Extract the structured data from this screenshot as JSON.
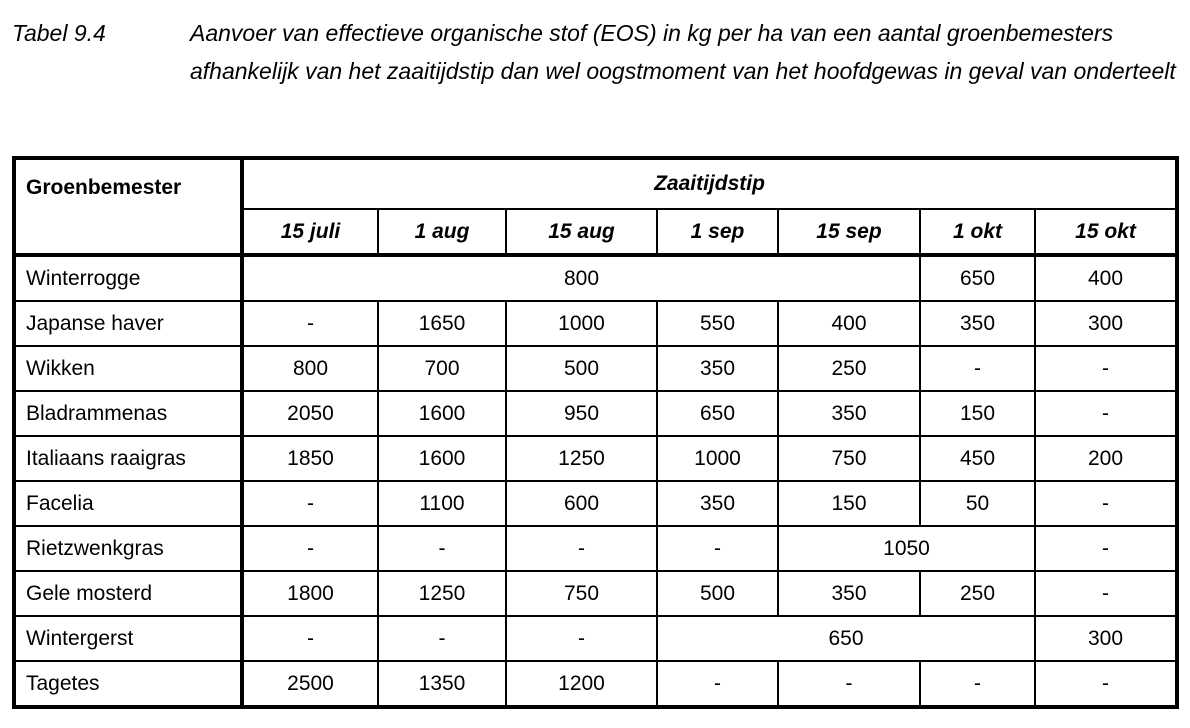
{
  "caption": {
    "label": "Tabel 9.4",
    "text": "Aanvoer van effectieve organische stof (EOS) in kg per ha van een aantal groenbemesters afhankelijk van het zaaitijdstip dan wel oogstmoment van het hoofdgewas in geval van onderteelt"
  },
  "table": {
    "row_header": "Groenbemester",
    "group_header": "Zaaitijdstip",
    "columns": [
      "15 juli",
      "1 aug",
      "15 aug",
      "1 sep",
      "15 sep",
      "1 okt",
      "15 okt"
    ],
    "rows": [
      {
        "name": "Winterrogge",
        "cells": [
          {
            "v": "800",
            "span": 5
          },
          {
            "v": "650"
          },
          {
            "v": "400"
          }
        ]
      },
      {
        "name": "Japanse haver",
        "cells": [
          {
            "v": "-"
          },
          {
            "v": "1650"
          },
          {
            "v": "1000"
          },
          {
            "v": "550"
          },
          {
            "v": "400"
          },
          {
            "v": "350"
          },
          {
            "v": "300"
          }
        ]
      },
      {
        "name": "Wikken",
        "cells": [
          {
            "v": "800"
          },
          {
            "v": "700"
          },
          {
            "v": "500"
          },
          {
            "v": "350"
          },
          {
            "v": "250"
          },
          {
            "v": "-"
          },
          {
            "v": "-"
          }
        ]
      },
      {
        "name": "Bladrammenas",
        "cells": [
          {
            "v": "2050"
          },
          {
            "v": "1600"
          },
          {
            "v": "950"
          },
          {
            "v": "650"
          },
          {
            "v": "350"
          },
          {
            "v": "150"
          },
          {
            "v": "-"
          }
        ]
      },
      {
        "name": "Italiaans raaigras",
        "cells": [
          {
            "v": "1850"
          },
          {
            "v": "1600"
          },
          {
            "v": "1250"
          },
          {
            "v": "1000"
          },
          {
            "v": "750"
          },
          {
            "v": "450"
          },
          {
            "v": "200"
          }
        ]
      },
      {
        "name": "Facelia",
        "cells": [
          {
            "v": "-"
          },
          {
            "v": "1100"
          },
          {
            "v": "600"
          },
          {
            "v": "350"
          },
          {
            "v": "150"
          },
          {
            "v": "50"
          },
          {
            "v": "-"
          }
        ]
      },
      {
        "name": "Rietzwenkgras",
        "cells": [
          {
            "v": "-"
          },
          {
            "v": "-"
          },
          {
            "v": "-"
          },
          {
            "v": "-"
          },
          {
            "v": "1050",
            "span": 2
          },
          {
            "v": "-"
          }
        ]
      },
      {
        "name": "Gele mosterd",
        "cells": [
          {
            "v": "1800"
          },
          {
            "v": "1250"
          },
          {
            "v": "750"
          },
          {
            "v": "500"
          },
          {
            "v": "350"
          },
          {
            "v": "250"
          },
          {
            "v": "-"
          }
        ]
      },
      {
        "name": "Wintergerst",
        "cells": [
          {
            "v": "-"
          },
          {
            "v": "-"
          },
          {
            "v": "-"
          },
          {
            "v": "650",
            "span": 3
          },
          {
            "v": "300"
          }
        ]
      },
      {
        "name": "Tagetes",
        "cells": [
          {
            "v": "2500"
          },
          {
            "v": "1350"
          },
          {
            "v": "1200"
          },
          {
            "v": "-"
          },
          {
            "v": "-"
          },
          {
            "v": "-"
          },
          {
            "v": "-"
          }
        ]
      }
    ]
  }
}
